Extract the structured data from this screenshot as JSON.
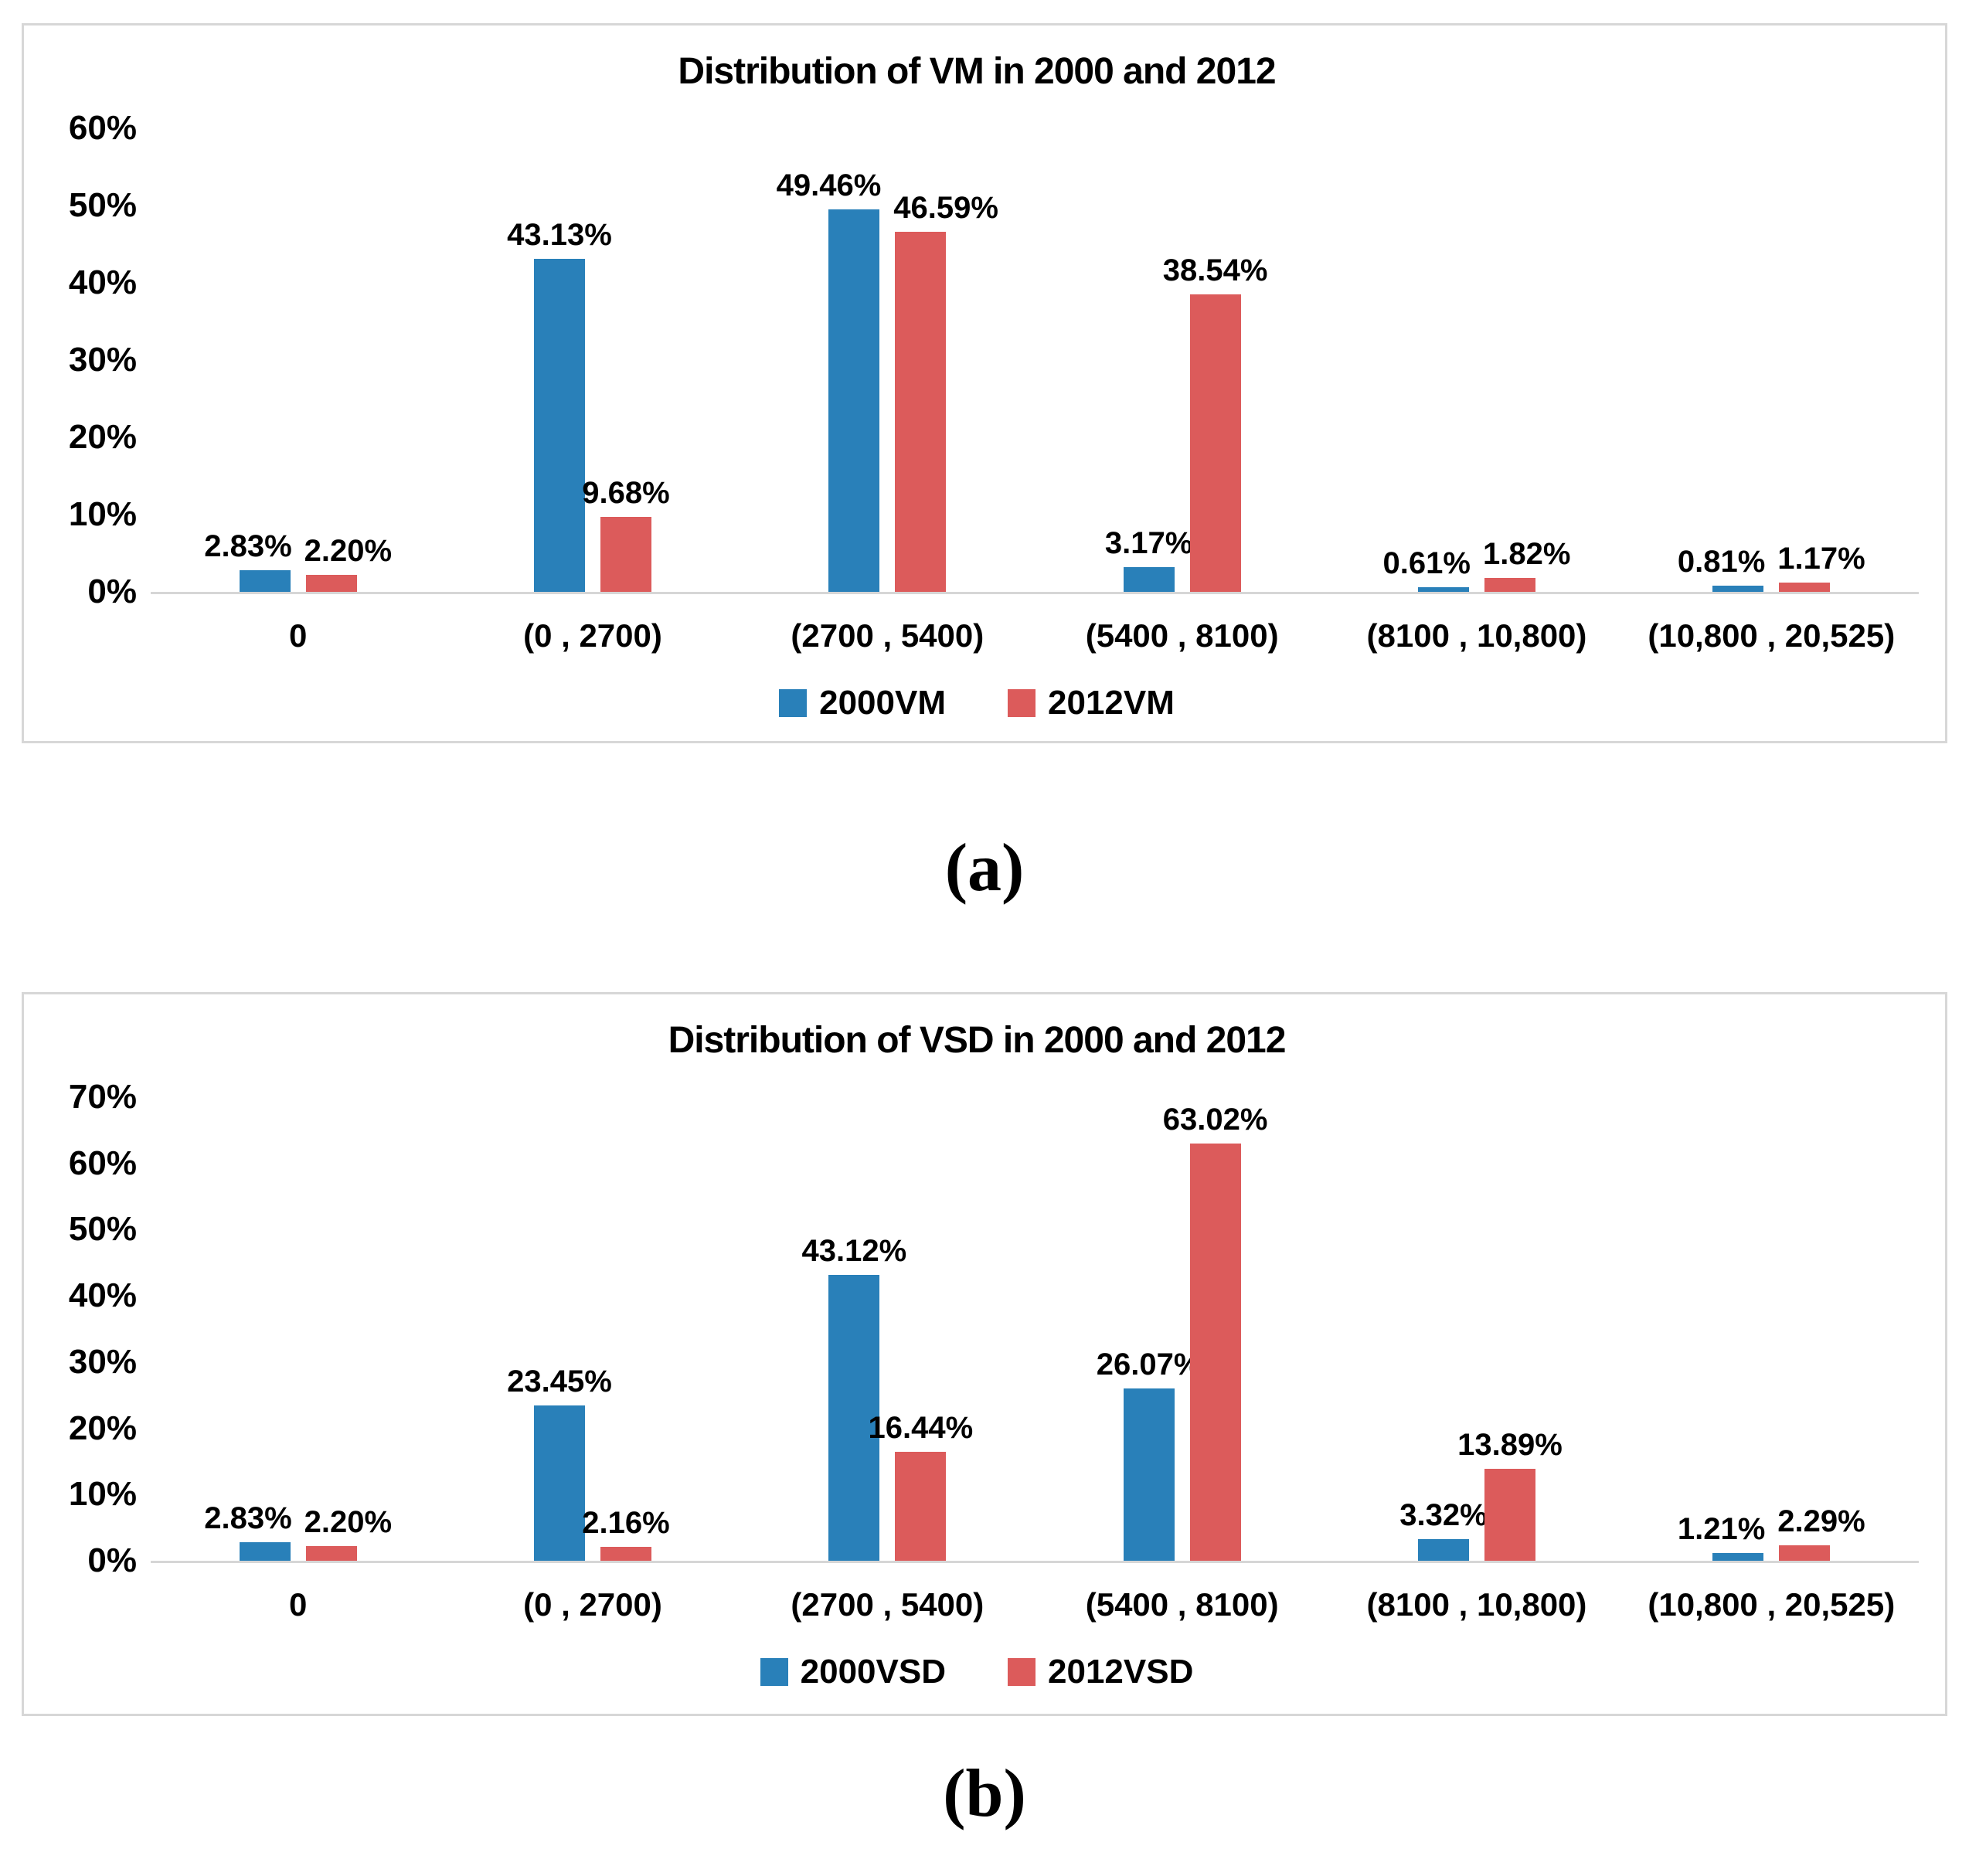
{
  "captions": {
    "a": "(a)",
    "b": "(b)"
  },
  "colors": {
    "series1": "#2980B9",
    "series2": "#DC5B5B",
    "axis": "#D6D6D6",
    "panel_border": "#D7D7D7",
    "text": "#000000"
  },
  "chart_data": [
    {
      "type": "bar",
      "title": "Distribution of VM in 2000 and 2012",
      "categories": [
        "0",
        "(0 , 2700)",
        "(2700 , 5400)",
        "(5400 , 8100)",
        "(8100 , 10,800)",
        "(10,800 , 20,525)"
      ],
      "series": [
        {
          "name": "2000VM",
          "color_key": "series1",
          "values": [
            2.83,
            43.13,
            49.46,
            3.17,
            0.61,
            0.81
          ],
          "labels": [
            "2.83%",
            "43.13%",
            "49.46%",
            "3.17%",
            "0.61%",
            "0.81%"
          ]
        },
        {
          "name": "2012VM",
          "color_key": "series2",
          "values": [
            2.2,
            9.68,
            46.59,
            38.54,
            1.82,
            1.17
          ],
          "labels": [
            "2.20%",
            "9.68%",
            "46.59%",
            "38.54%",
            "1.82%",
            "1.17%"
          ]
        }
      ],
      "ylim": [
        0,
        60
      ],
      "yticks": [
        0,
        10,
        20,
        30,
        40,
        50,
        60
      ],
      "ytick_labels": [
        "0%",
        "10%",
        "20%",
        "30%",
        "40%",
        "50%",
        "60%"
      ],
      "grid": false,
      "legend_position": "bottom"
    },
    {
      "type": "bar",
      "title": "Distribution of VSD in 2000 and 2012",
      "categories": [
        "0",
        "(0 , 2700)",
        "(2700 , 5400)",
        "(5400 , 8100)",
        "(8100 , 10,800)",
        "(10,800 , 20,525)"
      ],
      "series": [
        {
          "name": "2000VSD",
          "color_key": "series1",
          "values": [
            2.83,
            23.45,
            43.12,
            26.07,
            3.32,
            1.21
          ],
          "labels": [
            "2.83%",
            "23.45%",
            "43.12%",
            "26.07%",
            "3.32%",
            "1.21%"
          ]
        },
        {
          "name": "2012VSD",
          "color_key": "series2",
          "values": [
            2.2,
            2.16,
            16.44,
            63.02,
            13.89,
            2.29
          ],
          "labels": [
            "2.20%",
            "2.16%",
            "16.44%",
            "63.02%",
            "13.89%",
            "2.29%"
          ]
        }
      ],
      "ylim": [
        0,
        70
      ],
      "yticks": [
        0,
        10,
        20,
        30,
        40,
        50,
        60,
        70
      ],
      "ytick_labels": [
        "0%",
        "10%",
        "20%",
        "30%",
        "40%",
        "50%",
        "60%",
        "70%"
      ],
      "grid": false,
      "legend_position": "bottom"
    }
  ]
}
